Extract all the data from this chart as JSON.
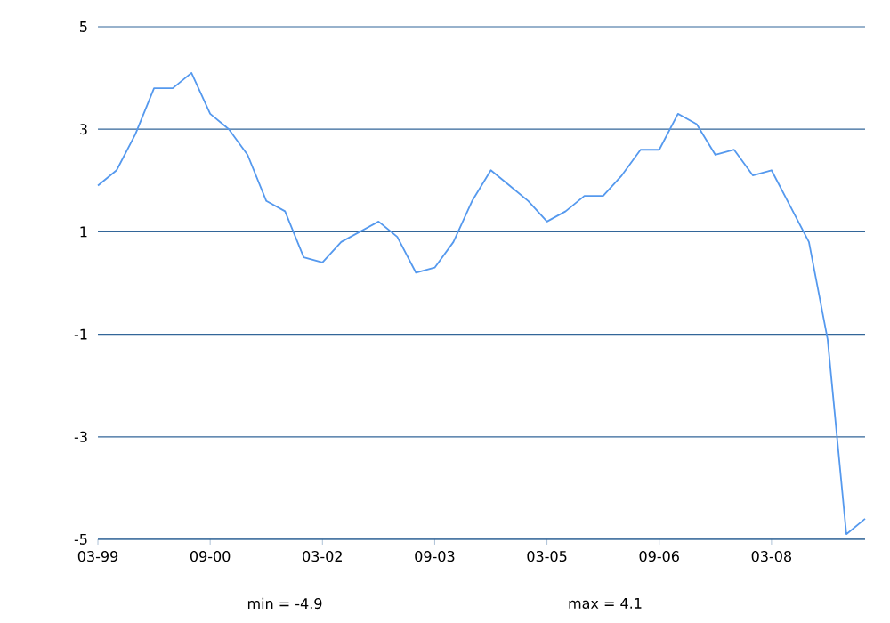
{
  "chart_data": {
    "type": "line",
    "x": [
      "1999-03",
      "1999-06",
      "1999-09",
      "1999-12",
      "2000-03",
      "2000-06",
      "2000-09",
      "2000-12",
      "2001-03",
      "2001-06",
      "2001-09",
      "2001-12",
      "2002-03",
      "2002-06",
      "2002-09",
      "2002-12",
      "2003-03",
      "2003-06",
      "2003-09",
      "2003-12",
      "2004-03",
      "2004-06",
      "2004-09",
      "2004-12",
      "2005-03",
      "2005-06",
      "2005-09",
      "2005-12",
      "2006-03",
      "2006-06",
      "2006-09",
      "2006-12",
      "2007-03",
      "2007-06",
      "2007-09",
      "2007-12",
      "2008-03",
      "2008-06",
      "2008-09",
      "2008-12",
      "2009-03",
      "2009-06"
    ],
    "values": [
      1.9,
      2.2,
      2.9,
      3.8,
      3.8,
      4.1,
      3.3,
      3.0,
      2.5,
      1.6,
      1.4,
      0.5,
      0.4,
      0.8,
      1.0,
      1.2,
      0.9,
      0.2,
      0.3,
      0.8,
      1.6,
      2.2,
      1.9,
      1.6,
      1.2,
      1.4,
      1.7,
      1.7,
      2.1,
      2.6,
      2.6,
      3.3,
      3.1,
      2.5,
      2.6,
      2.1,
      2.2,
      1.5,
      0.8,
      -1.1,
      -4.9,
      -4.6
    ],
    "color": "#5599ee",
    "xlim": [
      "1999-03",
      "2009-06"
    ],
    "xticks": [
      {
        "value": "1999-03",
        "label": "03-99"
      },
      {
        "value": "2000-09",
        "label": "09-00"
      },
      {
        "value": "2002-03",
        "label": "03-02"
      },
      {
        "value": "2003-09",
        "label": "09-03"
      },
      {
        "value": "2005-03",
        "label": "03-05"
      },
      {
        "value": "2006-09",
        "label": "09-06"
      },
      {
        "value": "2008-03",
        "label": "03-08"
      }
    ],
    "ylim": [
      -5,
      5
    ],
    "yticks": [
      -5,
      -3,
      -1,
      1,
      3,
      5
    ],
    "grid": "y",
    "annotations": [
      "min = -4.9",
      "max = 4.1"
    ]
  }
}
